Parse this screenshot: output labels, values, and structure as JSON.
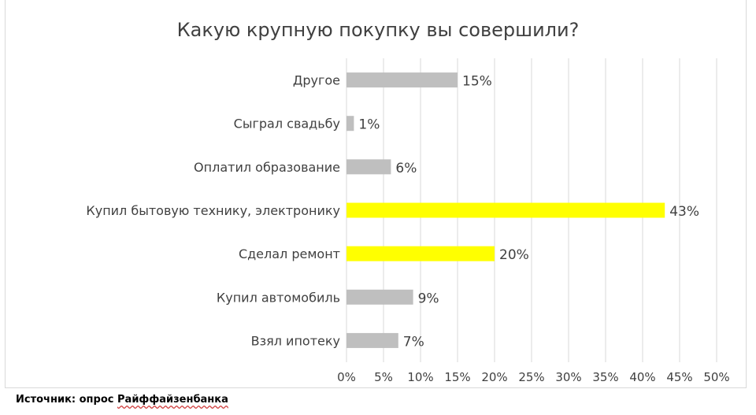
{
  "chart_data": {
    "type": "bar",
    "orientation": "horizontal",
    "title": "Какую крупную покупку вы совершили?",
    "categories": [
      "Другое",
      "Сыграл свадьбу",
      "Оплатил образование",
      "Купил бытовую технику, электронику",
      "Сделал ремонт",
      "Купил автомобиль",
      "Взял ипотеку"
    ],
    "values": [
      15,
      1,
      6,
      43,
      20,
      9,
      7
    ],
    "value_labels": [
      "15%",
      "1%",
      "6%",
      "43%",
      "20%",
      "9%",
      "7%"
    ],
    "highlighted": [
      false,
      false,
      false,
      true,
      true,
      false,
      false
    ],
    "xlim": [
      0,
      50
    ],
    "xticks": [
      0,
      5,
      10,
      15,
      20,
      25,
      30,
      35,
      40,
      45,
      50
    ],
    "xtick_labels": [
      "0%",
      "5%",
      "10%",
      "15%",
      "20%",
      "25%",
      "30%",
      "35%",
      "40%",
      "45%",
      "50%"
    ],
    "grid": "vertical",
    "legend": "none",
    "colors": {
      "default": "#bfbfbf",
      "highlight": "#ffff00",
      "grid": "#d9d9d9"
    }
  },
  "source": {
    "prefix": "Источник: опрос",
    "org": "Райффайзенбанка"
  }
}
